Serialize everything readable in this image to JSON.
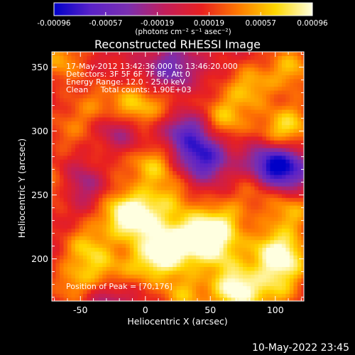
{
  "chart_data": {
    "type": "heatmap",
    "title": "Reconstructed RHESSI Image",
    "xlabel": "Heliocentric X (arcsec)",
    "ylabel": "Heliocentric Y (arcsec)",
    "xlim": [
      -72,
      122
    ],
    "ylim": [
      167,
      362
    ],
    "x_ticks": [
      -50,
      0,
      50,
      100
    ],
    "y_ticks": [
      200,
      250,
      300,
      350
    ],
    "colorbar": {
      "label": "(photons cm⁻² s⁻¹ asec⁻²)",
      "min": -0.00096,
      "max": 0.00096,
      "ticks": [
        "-0.00096",
        "-0.00057",
        "-0.00019",
        "0.00019",
        "0.00057",
        "0.00096"
      ],
      "colors": [
        "#0000c8",
        "#5a22c8",
        "#7a2fb0",
        "#c21e5a",
        "#e82020",
        "#ff7a00",
        "#ffd800",
        "#ffffe0"
      ]
    },
    "annotations": [
      "17-May-2012 13:42:36.000 to 13:46:20.000",
      "Detectors: 3F 5F 6F 7F 8F, Att 0",
      "Energy Range: 12.0 - 25.0 keV",
      "Clean     Total counts: 1.90E+03"
    ],
    "peak_label": "Position of Peak = [70,176]",
    "peak": [
      70,
      176
    ],
    "sources": [
      {
        "x": 70,
        "y": 176,
        "v": 1.0
      },
      {
        "x": 18,
        "y": 208,
        "v": 0.92
      },
      {
        "x": -5,
        "y": 232,
        "v": 0.85
      },
      {
        "x": -20,
        "y": 237,
        "v": 0.55
      },
      {
        "x": 20,
        "y": 246,
        "v": 0.45
      },
      {
        "x": 5,
        "y": 273,
        "v": 0.6
      },
      {
        "x": -45,
        "y": 210,
        "v": 0.55
      },
      {
        "x": -55,
        "y": 180,
        "v": 0.45
      },
      {
        "x": 40,
        "y": 219,
        "v": 0.75
      },
      {
        "x": 60,
        "y": 228,
        "v": 0.6
      },
      {
        "x": 55,
        "y": 205,
        "v": 0.55
      },
      {
        "x": 95,
        "y": 206,
        "v": 0.6
      },
      {
        "x": 110,
        "y": 200,
        "v": 0.65
      },
      {
        "x": 112,
        "y": 237,
        "v": 0.55
      },
      {
        "x": 85,
        "y": 256,
        "v": 0.4
      },
      {
        "x": -10,
        "y": 318,
        "v": 0.7
      },
      {
        "x": -40,
        "y": 320,
        "v": 0.35
      },
      {
        "x": 20,
        "y": 320,
        "v": 0.4
      },
      {
        "x": 60,
        "y": 310,
        "v": 0.6
      },
      {
        "x": 80,
        "y": 335,
        "v": 0.55
      },
      {
        "x": 112,
        "y": 350,
        "v": 0.55
      },
      {
        "x": 113,
        "y": 306,
        "v": 0.5
      },
      {
        "x": 100,
        "y": 295,
        "v": 0.45
      },
      {
        "x": -65,
        "y": 356,
        "v": 0.5
      },
      {
        "x": -68,
        "y": 258,
        "v": 0.45
      },
      {
        "x": -60,
        "y": 300,
        "v": 0.3
      },
      {
        "x": -30,
        "y": 280,
        "v": 0.3
      },
      {
        "x": 0,
        "y": 196,
        "v": 0.5
      },
      {
        "x": 30,
        "y": 172,
        "v": 0.55
      },
      {
        "x": 100,
        "y": 175,
        "v": 0.5
      },
      {
        "x": -30,
        "y": 190,
        "v": 0.45
      }
    ],
    "dips": [
      {
        "x": 45,
        "y": 280,
        "v": -0.85
      },
      {
        "x": 95,
        "y": 275,
        "v": -0.9
      },
      {
        "x": 110,
        "y": 270,
        "v": -0.7
      },
      {
        "x": 30,
        "y": 302,
        "v": -0.7
      },
      {
        "x": -20,
        "y": 300,
        "v": -0.55
      },
      {
        "x": 20,
        "y": 348,
        "v": -0.6
      },
      {
        "x": -50,
        "y": 260,
        "v": -0.5
      },
      {
        "x": -30,
        "y": 168,
        "v": -0.4
      }
    ]
  },
  "timestamp": "10-May-2022 23:45"
}
